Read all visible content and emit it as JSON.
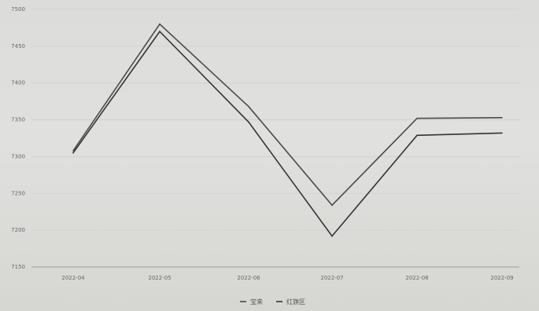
{
  "chart_data": {
    "type": "line",
    "title": "",
    "xlabel": "",
    "ylabel": "",
    "categories": [
      "2022-04",
      "2022-05",
      "2022-06",
      "2022-07",
      "2022-08",
      "2022-09"
    ],
    "ylim": [
      7150,
      7500
    ],
    "yticks": [
      7150,
      7200,
      7250,
      7300,
      7350,
      7400,
      7450,
      7500
    ],
    "grid": true,
    "legend_position": "bottom-center",
    "series": [
      {
        "name": "宝来",
        "values": [
          7308,
          7480,
          7368,
          7234,
          7352,
          7353
        ]
      },
      {
        "name": "红旗区",
        "values": [
          7305,
          7470,
          7347,
          7192,
          7329,
          7332
        ]
      }
    ],
    "colors": {
      "series": [
        "#4a4a4a",
        "#333333"
      ],
      "grid": "#cfcfcc",
      "axis": "#999999"
    }
  }
}
